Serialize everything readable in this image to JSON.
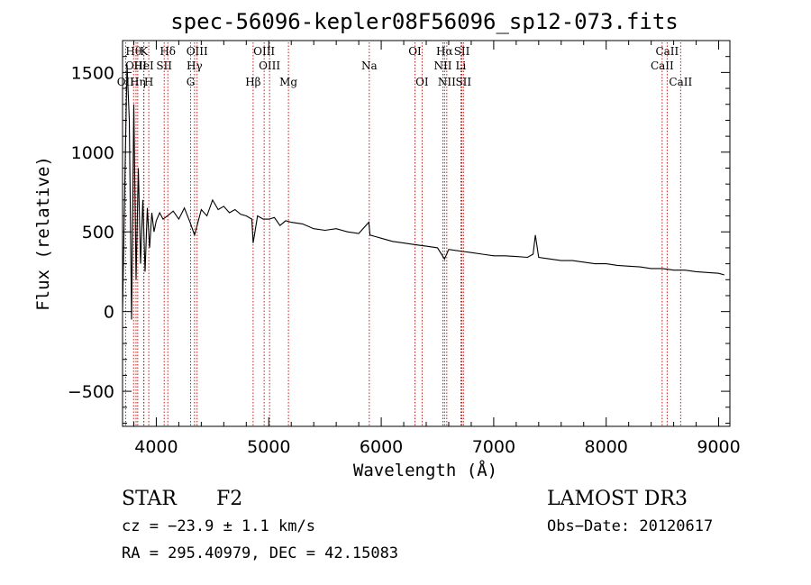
{
  "chart_data": {
    "type": "line",
    "title": "spec-56096-kepler08F56096_sp12-073.fits",
    "xlabel": "Wavelength (Å)",
    "ylabel": "Flux (relative)",
    "xlim": [
      3700,
      9100
    ],
    "ylim": [
      -720,
      1700
    ],
    "xticks": [
      4000,
      5000,
      6000,
      7000,
      8000,
      9000
    ],
    "xtick_labels": [
      "4000",
      "5000",
      "6000",
      "7000",
      "8000",
      "9000"
    ],
    "yticks": [
      -500,
      0,
      500,
      1000,
      1500
    ],
    "ytick_labels": [
      "−500",
      "0",
      "500",
      "1000",
      "1500"
    ],
    "series": [
      {
        "name": "spectrum",
        "color": "#000000",
        "x": [
          3700,
          3720,
          3740,
          3760,
          3780,
          3800,
          3820,
          3840,
          3860,
          3880,
          3900,
          3920,
          3940,
          3960,
          3980,
          4000,
          4030,
          4060,
          4100,
          4150,
          4200,
          4250,
          4300,
          4340,
          4400,
          4450,
          4500,
          4550,
          4600,
          4650,
          4700,
          4750,
          4800,
          4850,
          4861,
          4900,
          4950,
          5000,
          5050,
          5100,
          5150,
          5200,
          5300,
          5400,
          5500,
          5600,
          5700,
          5800,
          5890,
          5900,
          5950,
          6000,
          6100,
          6200,
          6300,
          6400,
          6500,
          6563,
          6600,
          6700,
          6800,
          6900,
          7000,
          7100,
          7200,
          7300,
          7350,
          7370,
          7400,
          7500,
          7600,
          7700,
          7800,
          7900,
          8000,
          8100,
          8200,
          8300,
          8400,
          8500,
          8600,
          8700,
          8800,
          8900,
          9000,
          9050
        ],
        "y": [
          0,
          800,
          1550,
          1200,
          -50,
          1300,
          200,
          900,
          300,
          700,
          250,
          650,
          400,
          620,
          500,
          570,
          620,
          580,
          600,
          630,
          580,
          650,
          560,
          480,
          640,
          600,
          700,
          640,
          660,
          620,
          640,
          610,
          600,
          580,
          430,
          600,
          580,
          580,
          590,
          540,
          570,
          560,
          550,
          520,
          510,
          520,
          500,
          490,
          560,
          480,
          470,
          460,
          440,
          430,
          420,
          410,
          400,
          330,
          390,
          380,
          370,
          360,
          350,
          350,
          345,
          340,
          360,
          480,
          340,
          330,
          320,
          320,
          310,
          300,
          300,
          290,
          285,
          280,
          270,
          270,
          260,
          260,
          250,
          245,
          240,
          230
        ]
      }
    ],
    "emission_lines": [
      {
        "label": "OII",
        "x": 3727,
        "row": 3
      },
      {
        "label": "Hθ",
        "x": 3798,
        "row": 1
      },
      {
        "label": "OIII",
        "x": 3820,
        "row": 2
      },
      {
        "label": "Hη",
        "x": 3835,
        "row": 3
      },
      {
        "label": "K",
        "x": 3890,
        "row": 1
      },
      {
        "label": "HeI",
        "x": 3889,
        "row": 2
      },
      {
        "label": "H",
        "x": 3933,
        "row": 3
      },
      {
        "label": "SII",
        "x": 4070,
        "row": 2
      },
      {
        "label": "Hδ",
        "x": 4102,
        "row": 1
      },
      {
        "label": "OIII",
        "x": 4363,
        "row": 1
      },
      {
        "label": "Hγ",
        "x": 4340,
        "row": 2
      },
      {
        "label": "G",
        "x": 4305,
        "row": 3
      },
      {
        "label": "Hβ",
        "x": 4861,
        "row": 3
      },
      {
        "label": "OIII",
        "x": 4959,
        "row": 1
      },
      {
        "label": "OIII",
        "x": 5007,
        "row": 2
      },
      {
        "label": "Mg",
        "x": 5175,
        "row": 3
      },
      {
        "label": "Na",
        "x": 5894,
        "row": 2
      },
      {
        "label": "OI",
        "x": 6300,
        "row": 1
      },
      {
        "label": "OI",
        "x": 6363,
        "row": 3
      },
      {
        "label": "Hα",
        "x": 6563,
        "row": 1
      },
      {
        "label": "NII",
        "x": 6548,
        "row": 2
      },
      {
        "label": "NII",
        "x": 6583,
        "row": 3
      },
      {
        "label": "SII",
        "x": 6717,
        "row": 1
      },
      {
        "label": "Li",
        "x": 6708,
        "row": 2
      },
      {
        "label": "SII",
        "x": 6731,
        "row": 3
      },
      {
        "label": "CaII",
        "x": 8542,
        "row": 1
      },
      {
        "label": "CaII",
        "x": 8498,
        "row": 2
      },
      {
        "label": "CaII",
        "x": 8662,
        "row": 3
      }
    ]
  },
  "footer": {
    "class_label": "STAR",
    "subclass": "F2",
    "survey": "LAMOST DR3",
    "cz": "cz = −23.9 ± 1.1 km/s",
    "obs_date": "Obs−Date: 20120617",
    "coords": "RA = 295.40979, DEC =  42.15083"
  }
}
